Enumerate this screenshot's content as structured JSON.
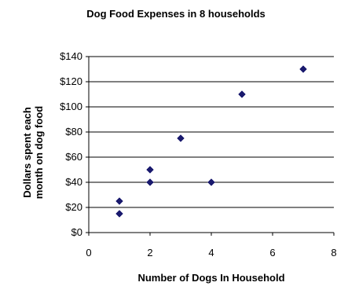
{
  "chart_data": {
    "type": "scatter",
    "title": "Dog Food Expenses in 8 households",
    "xlabel": "Number of Dogs In Household",
    "ylabel_lines": [
      "Dollars spent each",
      "month on dog food"
    ],
    "xlim": [
      0,
      8
    ],
    "ylim": [
      0,
      140
    ],
    "xticks": [
      0,
      2,
      4,
      6,
      8
    ],
    "xtick_labels": [
      "0",
      "2",
      "4",
      "6",
      "8"
    ],
    "yticks": [
      0,
      20,
      40,
      60,
      80,
      100,
      120,
      140
    ],
    "ytick_labels": [
      "$0",
      "$20",
      "$40",
      "$60",
      "$80",
      "$100",
      "$120",
      "$140"
    ],
    "grid": {
      "horizontal": true,
      "vertical": false
    },
    "legend": "none",
    "marker": "diamond",
    "colors": {
      "marker": "#1a1a6e",
      "axis": "#000000",
      "grid": "#000000"
    },
    "points": [
      {
        "x": 1,
        "y": 25
      },
      {
        "x": 1,
        "y": 15
      },
      {
        "x": 2,
        "y": 50
      },
      {
        "x": 2,
        "y": 40
      },
      {
        "x": 3,
        "y": 75
      },
      {
        "x": 4,
        "y": 40
      },
      {
        "x": 5,
        "y": 110
      },
      {
        "x": 7,
        "y": 130
      }
    ]
  }
}
